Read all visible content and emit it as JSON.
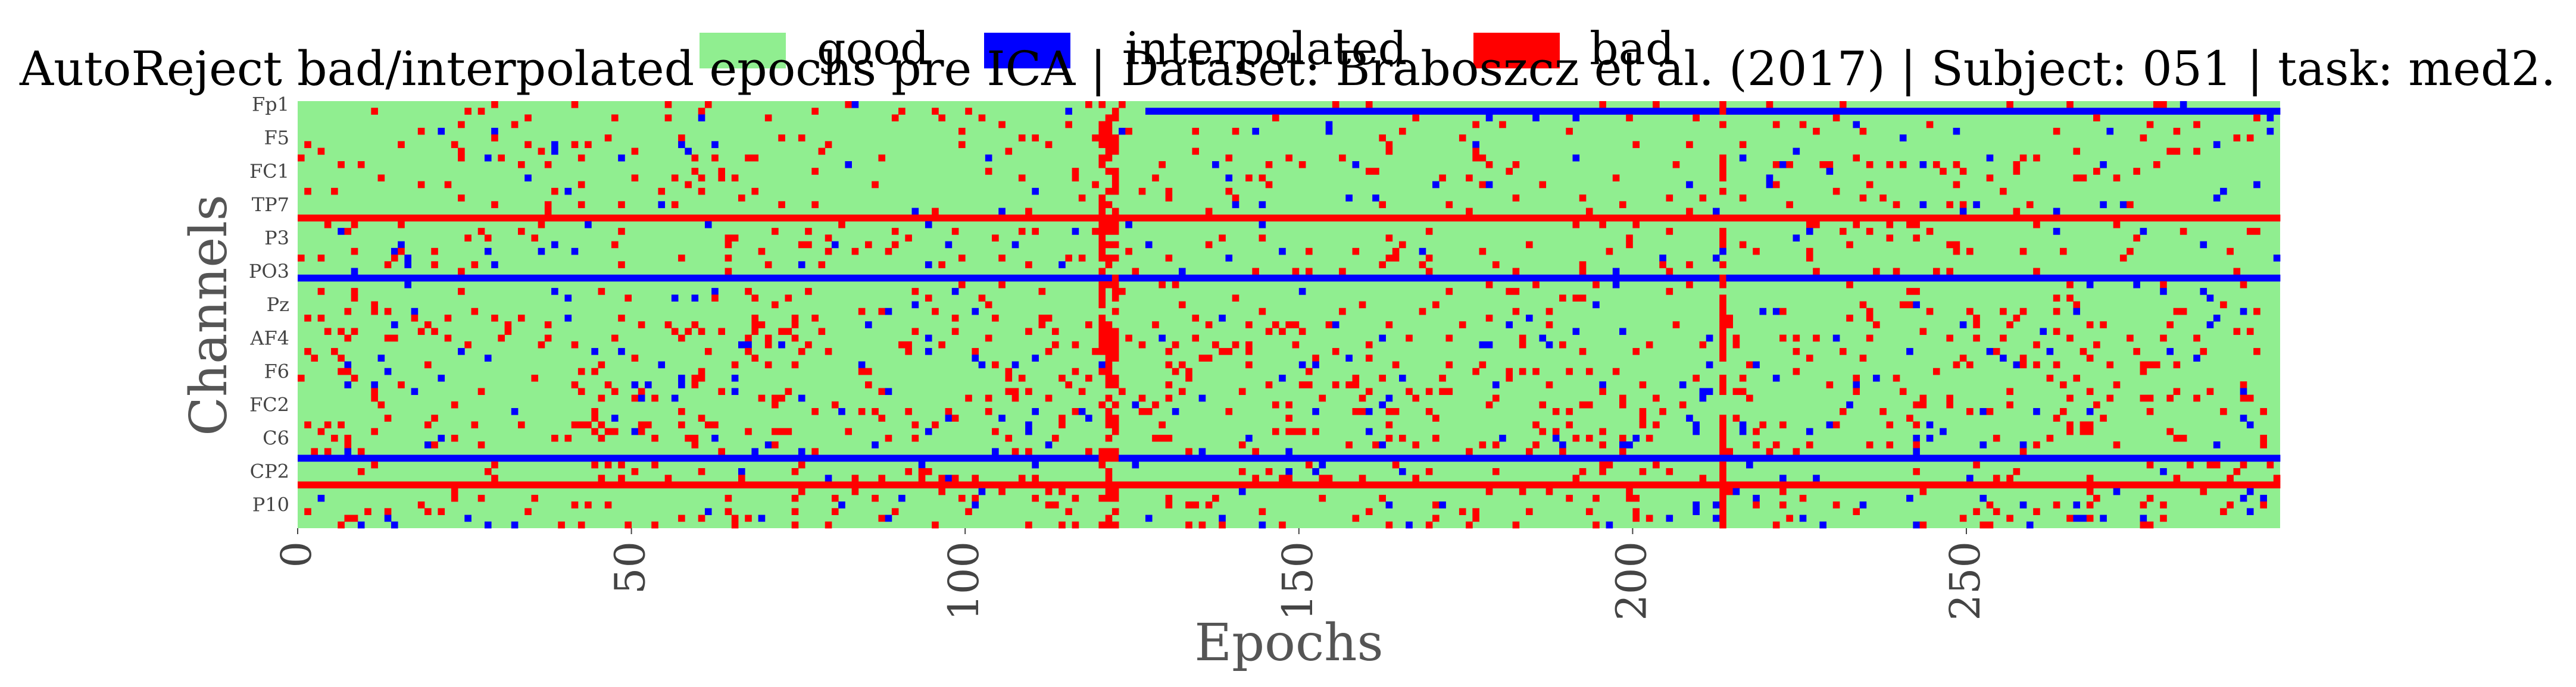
{
  "chart_data": {
    "type": "heatmap",
    "title": "AutoReject bad/interpolated epochs pre ICA | Dataset: Braboszcz et al. (2017) | Subject: 051 | task: med2.",
    "xlabel": "Epochs",
    "ylabel": "Channels",
    "xlim": [
      0,
      297
    ],
    "x_ticks": [
      0,
      50,
      100,
      150,
      200,
      250
    ],
    "y_tick_labels": [
      "Fp1",
      "F5",
      "FC1",
      "TP7",
      "P3",
      "PO3",
      "Pz",
      "AF4",
      "F6",
      "FC2",
      "C6",
      "CP2",
      "P10"
    ],
    "n_epochs": 297,
    "n_channels": 64,
    "legend": [
      {
        "label": "good",
        "color": "#90ee90"
      },
      {
        "label": "interpolated",
        "color": "#0000ff"
      },
      {
        "label": "bad",
        "color": "#ff0000"
      }
    ],
    "legend_placement": "top-center",
    "grid": false,
    "rows_full": [
      {
        "channel_index": 1,
        "from_epoch": 127,
        "to_epoch": 297,
        "status": "interpolated"
      },
      {
        "channel_index": 17,
        "from_epoch": 0,
        "to_epoch": 297,
        "status": "bad"
      },
      {
        "channel_index": 26,
        "from_epoch": 0,
        "to_epoch": 297,
        "status": "interpolated"
      },
      {
        "channel_index": 53,
        "from_epoch": 0,
        "to_epoch": 297,
        "status": "interpolated"
      },
      {
        "channel_index": 57,
        "from_epoch": 0,
        "to_epoch": 297,
        "status": "bad"
      }
    ],
    "mostly_bad_epochs": [
      120,
      121,
      122,
      213
    ],
    "mostly_interpolated_epochs": []
  }
}
